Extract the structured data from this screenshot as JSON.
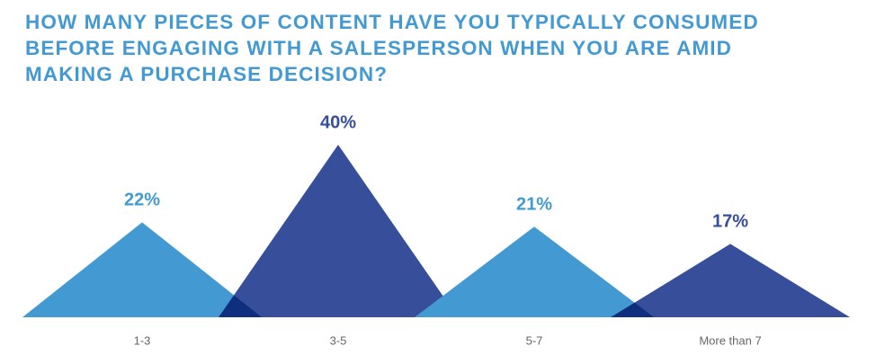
{
  "chart_data": {
    "type": "triangle",
    "title": "HOW MANY PIECES OF CONTENT HAVE YOU TYPICALLY CONSUMED\nBEFORE ENGAGING WITH A SALESPERSON WHEN YOU ARE AMID\nMAKING A PURCHASE DECISION?",
    "categories": [
      "1-3",
      "3-5",
      "5-7",
      "More than 7"
    ],
    "values": [
      22,
      40,
      21,
      17
    ],
    "value_labels": [
      "22%",
      "40%",
      "21%",
      "17%"
    ],
    "colors": [
      "#4399d1",
      "#374e9a",
      "#4399d1",
      "#374e9a"
    ]
  }
}
